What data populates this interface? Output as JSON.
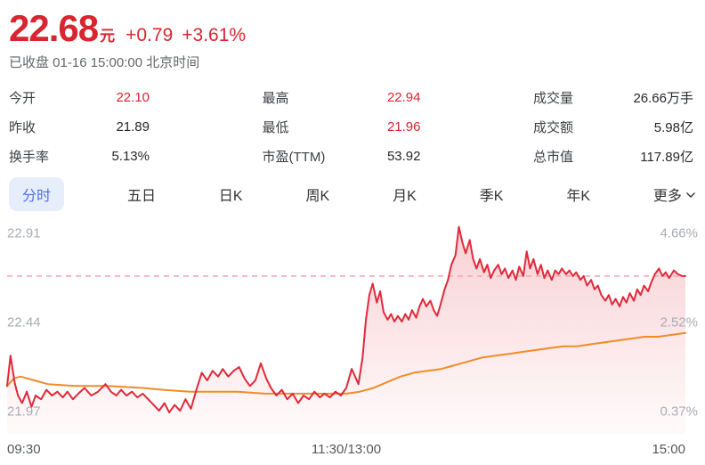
{
  "header": {
    "price": "22.68",
    "currency": "元",
    "change": "+0.79",
    "change_pct": "+3.61%",
    "status_line": "已收盘 01-16 15:00:00 北京时间"
  },
  "stats": {
    "columns": [
      {
        "rows": [
          {
            "label": "今开",
            "value": "22.10",
            "highlight": true
          },
          {
            "label": "昨收",
            "value": "21.89",
            "highlight": false
          },
          {
            "label": "换手率",
            "value": "5.13%",
            "highlight": false
          }
        ]
      },
      {
        "rows": [
          {
            "label": "最高",
            "value": "22.94",
            "highlight": true
          },
          {
            "label": "最低",
            "value": "21.96",
            "highlight": true
          },
          {
            "label": "市盈(TTM)",
            "value": "53.92",
            "highlight": false
          }
        ]
      },
      {
        "rows": [
          {
            "label": "成交量",
            "value": "26.66万手",
            "highlight": false
          },
          {
            "label": "成交额",
            "value": "5.98亿",
            "highlight": false
          },
          {
            "label": "总市值",
            "value": "117.89亿",
            "highlight": false
          }
        ]
      }
    ]
  },
  "tabs": {
    "items": [
      {
        "label": "分时",
        "active": true,
        "chevron": false
      },
      {
        "label": "五日",
        "active": false,
        "chevron": false
      },
      {
        "label": "日K",
        "active": false,
        "chevron": false
      },
      {
        "label": "周K",
        "active": false,
        "chevron": false
      },
      {
        "label": "月K",
        "active": false,
        "chevron": false
      },
      {
        "label": "季K",
        "active": false,
        "chevron": false
      },
      {
        "label": "年K",
        "active": false,
        "chevron": false
      },
      {
        "label": "更多",
        "active": false,
        "chevron": true
      }
    ]
  },
  "chart_data": {
    "type": "line",
    "title": "分时 intraday price chart",
    "prev_close": 21.89,
    "close": 22.68,
    "high": 22.94,
    "low": 21.96,
    "axis": {
      "top_value": 22.91,
      "mid_value": 22.44,
      "bottom_value": 21.97,
      "left_labels": [
        "22.91",
        "22.44",
        "21.97"
      ],
      "right_labels": [
        "4.66%",
        "2.52%",
        "0.37%"
      ],
      "x_labels": [
        "09:30",
        "11:30/13:00",
        "15:00"
      ]
    },
    "colors": {
      "price_line": "#e0293a",
      "avg_line": "#f08c25",
      "dashed_line": "#f2aab1",
      "axis_label": "#a9adb5",
      "up_red": "#d9252f",
      "tab_active_bg": "#e6eefb",
      "tab_active_text": "#4e6ef2"
    },
    "series": [
      {
        "name": "price",
        "points": [
          [
            0.0,
            22.1
          ],
          [
            0.005,
            22.26
          ],
          [
            0.011,
            22.12
          ],
          [
            0.016,
            22.05
          ],
          [
            0.022,
            22.01
          ],
          [
            0.029,
            22.07
          ],
          [
            0.036,
            21.99
          ],
          [
            0.042,
            22.05
          ],
          [
            0.05,
            22.03
          ],
          [
            0.058,
            22.08
          ],
          [
            0.066,
            22.05
          ],
          [
            0.074,
            22.07
          ],
          [
            0.082,
            22.04
          ],
          [
            0.089,
            22.07
          ],
          [
            0.097,
            22.03
          ],
          [
            0.105,
            22.06
          ],
          [
            0.114,
            22.09
          ],
          [
            0.124,
            22.05
          ],
          [
            0.134,
            22.07
          ],
          [
            0.145,
            22.11
          ],
          [
            0.153,
            22.07
          ],
          [
            0.161,
            22.05
          ],
          [
            0.168,
            22.08
          ],
          [
            0.176,
            22.05
          ],
          [
            0.184,
            22.07
          ],
          [
            0.192,
            22.04
          ],
          [
            0.2,
            22.06
          ],
          [
            0.208,
            22.03
          ],
          [
            0.216,
            22.0
          ],
          [
            0.224,
            21.97
          ],
          [
            0.232,
            22.01
          ],
          [
            0.239,
            21.96
          ],
          [
            0.247,
            22.0
          ],
          [
            0.255,
            21.97
          ],
          [
            0.263,
            22.03
          ],
          [
            0.271,
            21.98
          ],
          [
            0.279,
            22.08
          ],
          [
            0.287,
            22.17
          ],
          [
            0.295,
            22.13
          ],
          [
            0.303,
            22.18
          ],
          [
            0.311,
            22.15
          ],
          [
            0.318,
            22.19
          ],
          [
            0.326,
            22.15
          ],
          [
            0.334,
            22.18
          ],
          [
            0.342,
            22.2
          ],
          [
            0.35,
            22.14
          ],
          [
            0.358,
            22.1
          ],
          [
            0.366,
            22.13
          ],
          [
            0.374,
            22.22
          ],
          [
            0.382,
            22.14
          ],
          [
            0.389,
            22.09
          ],
          [
            0.397,
            22.05
          ],
          [
            0.405,
            22.08
          ],
          [
            0.413,
            22.03
          ],
          [
            0.421,
            22.06
          ],
          [
            0.429,
            22.01
          ],
          [
            0.437,
            22.05
          ],
          [
            0.445,
            22.03
          ],
          [
            0.453,
            22.07
          ],
          [
            0.461,
            22.04
          ],
          [
            0.468,
            22.06
          ],
          [
            0.476,
            22.04
          ],
          [
            0.484,
            22.07
          ],
          [
            0.492,
            22.05
          ],
          [
            0.5,
            22.09
          ],
          [
            0.508,
            22.19
          ],
          [
            0.513,
            22.15
          ],
          [
            0.518,
            22.11
          ],
          [
            0.524,
            22.25
          ],
          [
            0.529,
            22.45
          ],
          [
            0.534,
            22.58
          ],
          [
            0.539,
            22.64
          ],
          [
            0.545,
            22.54
          ],
          [
            0.55,
            22.6
          ],
          [
            0.555,
            22.49
          ],
          [
            0.561,
            22.45
          ],
          [
            0.566,
            22.48
          ],
          [
            0.571,
            22.44
          ],
          [
            0.576,
            22.47
          ],
          [
            0.582,
            22.44
          ],
          [
            0.587,
            22.48
          ],
          [
            0.592,
            22.45
          ],
          [
            0.597,
            22.5
          ],
          [
            0.603,
            22.46
          ],
          [
            0.608,
            22.52
          ],
          [
            0.613,
            22.56
          ],
          [
            0.618,
            22.52
          ],
          [
            0.624,
            22.55
          ],
          [
            0.629,
            22.5
          ],
          [
            0.634,
            22.47
          ],
          [
            0.639,
            22.53
          ],
          [
            0.645,
            22.61
          ],
          [
            0.65,
            22.66
          ],
          [
            0.655,
            22.74
          ],
          [
            0.661,
            22.79
          ],
          [
            0.666,
            22.94
          ],
          [
            0.671,
            22.86
          ],
          [
            0.676,
            22.8
          ],
          [
            0.682,
            22.87
          ],
          [
            0.687,
            22.77
          ],
          [
            0.692,
            22.72
          ],
          [
            0.697,
            22.77
          ],
          [
            0.703,
            22.7
          ],
          [
            0.708,
            22.74
          ],
          [
            0.713,
            22.67
          ],
          [
            0.718,
            22.71
          ],
          [
            0.724,
            22.74
          ],
          [
            0.729,
            22.69
          ],
          [
            0.734,
            22.72
          ],
          [
            0.739,
            22.67
          ],
          [
            0.745,
            22.71
          ],
          [
            0.75,
            22.66
          ],
          [
            0.755,
            22.73
          ],
          [
            0.761,
            22.68
          ],
          [
            0.766,
            22.81
          ],
          [
            0.771,
            22.72
          ],
          [
            0.776,
            22.77
          ],
          [
            0.782,
            22.69
          ],
          [
            0.787,
            22.74
          ],
          [
            0.792,
            22.67
          ],
          [
            0.797,
            22.71
          ],
          [
            0.803,
            22.66
          ],
          [
            0.808,
            22.71
          ],
          [
            0.813,
            22.69
          ],
          [
            0.818,
            22.72
          ],
          [
            0.824,
            22.69
          ],
          [
            0.829,
            22.71
          ],
          [
            0.834,
            22.68
          ],
          [
            0.839,
            22.7
          ],
          [
            0.845,
            22.66
          ],
          [
            0.85,
            22.68
          ],
          [
            0.855,
            22.63
          ],
          [
            0.861,
            22.66
          ],
          [
            0.866,
            22.61
          ],
          [
            0.871,
            22.63
          ],
          [
            0.876,
            22.58
          ],
          [
            0.882,
            22.55
          ],
          [
            0.887,
            22.58
          ],
          [
            0.892,
            22.53
          ],
          [
            0.897,
            22.56
          ],
          [
            0.903,
            22.52
          ],
          [
            0.908,
            22.57
          ],
          [
            0.913,
            22.54
          ],
          [
            0.918,
            22.59
          ],
          [
            0.924,
            22.55
          ],
          [
            0.929,
            22.61
          ],
          [
            0.934,
            22.58
          ],
          [
            0.939,
            22.63
          ],
          [
            0.945,
            22.6
          ],
          [
            0.95,
            22.65
          ],
          [
            0.955,
            22.69
          ],
          [
            0.961,
            22.72
          ],
          [
            0.966,
            22.68
          ],
          [
            0.971,
            22.7
          ],
          [
            0.976,
            22.67
          ],
          [
            0.983,
            22.71
          ],
          [
            0.989,
            22.69
          ],
          [
            0.995,
            22.68
          ],
          [
            1.0,
            22.68
          ]
        ]
      },
      {
        "name": "average",
        "points": [
          [
            0.0,
            22.1
          ],
          [
            0.01,
            22.14
          ],
          [
            0.02,
            22.15
          ],
          [
            0.04,
            22.13
          ],
          [
            0.06,
            22.11
          ],
          [
            0.1,
            22.1
          ],
          [
            0.15,
            22.1
          ],
          [
            0.2,
            22.09
          ],
          [
            0.23,
            22.08
          ],
          [
            0.27,
            22.07
          ],
          [
            0.3,
            22.07
          ],
          [
            0.34,
            22.07
          ],
          [
            0.38,
            22.06
          ],
          [
            0.42,
            22.06
          ],
          [
            0.46,
            22.06
          ],
          [
            0.5,
            22.06
          ],
          [
            0.52,
            22.07
          ],
          [
            0.54,
            22.09
          ],
          [
            0.56,
            22.12
          ],
          [
            0.58,
            22.15
          ],
          [
            0.6,
            22.17
          ],
          [
            0.62,
            22.18
          ],
          [
            0.64,
            22.19
          ],
          [
            0.66,
            22.21
          ],
          [
            0.68,
            22.23
          ],
          [
            0.7,
            22.25
          ],
          [
            0.72,
            22.26
          ],
          [
            0.74,
            22.27
          ],
          [
            0.76,
            22.28
          ],
          [
            0.78,
            22.29
          ],
          [
            0.8,
            22.3
          ],
          [
            0.82,
            22.31
          ],
          [
            0.84,
            22.31
          ],
          [
            0.86,
            22.32
          ],
          [
            0.88,
            22.33
          ],
          [
            0.9,
            22.34
          ],
          [
            0.92,
            22.35
          ],
          [
            0.94,
            22.36
          ],
          [
            0.96,
            22.36
          ],
          [
            0.98,
            22.37
          ],
          [
            1.0,
            22.38
          ]
        ]
      }
    ]
  }
}
